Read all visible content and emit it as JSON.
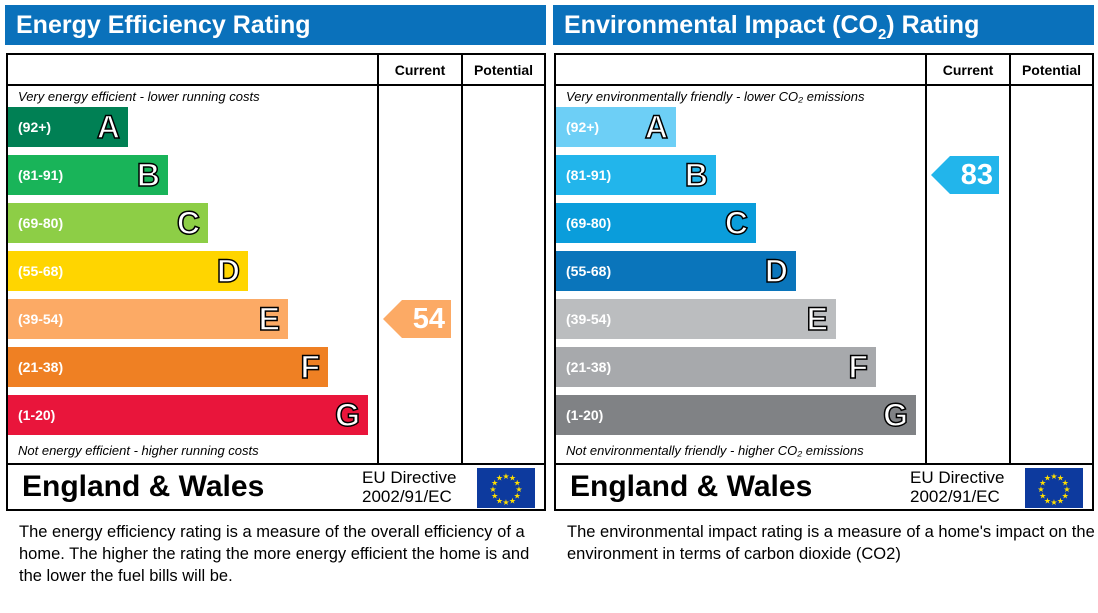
{
  "chart_data": [
    {
      "type": "bar",
      "title": "Energy Efficiency Rating",
      "columns": [
        "Current",
        "Potential"
      ],
      "top_note": "Very energy efficient - lower running costs",
      "bottom_note": "Not energy efficient - higher running costs",
      "bands": [
        {
          "range": "(92+)",
          "letter": "A",
          "color": "#008054"
        },
        {
          "range": "(81-91)",
          "letter": "B",
          "color": "#19b459"
        },
        {
          "range": "(69-80)",
          "letter": "C",
          "color": "#8dce46"
        },
        {
          "range": "(55-68)",
          "letter": "D",
          "color": "#ffd500"
        },
        {
          "range": "(39-54)",
          "letter": "E",
          "color": "#fcaa65"
        },
        {
          "range": "(21-38)",
          "letter": "F",
          "color": "#ef8023"
        },
        {
          "range": "(1-20)",
          "letter": "G",
          "color": "#e9153b"
        }
      ],
      "current": {
        "value": "54",
        "band": "E",
        "color": "#fcaa65"
      },
      "potential": null,
      "footer": {
        "region": "England & Wales",
        "directive_line1": "EU Directive",
        "directive_line2": "2002/91/EC"
      },
      "description": "The energy efficiency rating is a measure of the overall efficiency of a home.  The higher the rating the more energy efficient the home is and the lower the fuel bills will be."
    },
    {
      "type": "bar",
      "title": "Environmental Impact (CO",
      "title_sub": "2",
      "title_end": ") Rating",
      "columns": [
        "Current",
        "Potential"
      ],
      "top_note": "Very environmentally friendly - lower CO₂ emissions",
      "bottom_note": "Not environmentally friendly - higher CO₂ emissions",
      "bands": [
        {
          "range": "(92+)",
          "letter": "A",
          "color": "#6dcff6"
        },
        {
          "range": "(81-91)",
          "letter": "B",
          "color": "#22b5eb"
        },
        {
          "range": "(69-80)",
          "letter": "C",
          "color": "#0a9ddb"
        },
        {
          "range": "(55-68)",
          "letter": "D",
          "color": "#0a75bb"
        },
        {
          "range": "(39-54)",
          "letter": "E",
          "color": "#bbbdbf"
        },
        {
          "range": "(21-38)",
          "letter": "F",
          "color": "#a7a9ac"
        },
        {
          "range": "(1-20)",
          "letter": "G",
          "color": "#808285"
        }
      ],
      "current": {
        "value": "83",
        "band": "B",
        "color": "#22b5eb"
      },
      "potential": null,
      "footer": {
        "region": "England & Wales",
        "directive_line1": "EU Directive",
        "directive_line2": "2002/91/EC"
      },
      "description": "The environmental impact rating is a measure of a home's impact on the environment in terms of carbon dioxide (CO2)"
    }
  ]
}
